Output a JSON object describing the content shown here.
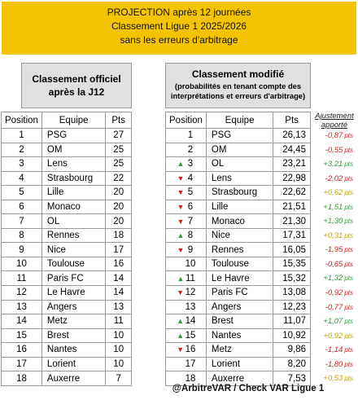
{
  "banner": {
    "line1": "PROJECTION après 12 journées",
    "line2": "Classement Ligue 1 2025/2026",
    "line3": "sans les erreurs d'arbitrage"
  },
  "left": {
    "title_line1": "Classement officiel",
    "title_line2": "après la J12",
    "headers": [
      "Position",
      "Equipe",
      "Pts"
    ],
    "rows": [
      {
        "pos": "1",
        "team": "PSG",
        "pts": "27"
      },
      {
        "pos": "2",
        "team": "OM",
        "pts": "25"
      },
      {
        "pos": "3",
        "team": "Lens",
        "pts": "25"
      },
      {
        "pos": "4",
        "team": "Strasbourg",
        "pts": "22"
      },
      {
        "pos": "5",
        "team": "Lille",
        "pts": "20"
      },
      {
        "pos": "6",
        "team": "Monaco",
        "pts": "20"
      },
      {
        "pos": "7",
        "team": "OL",
        "pts": "20"
      },
      {
        "pos": "8",
        "team": "Rennes",
        "pts": "18"
      },
      {
        "pos": "9",
        "team": "Nice",
        "pts": "17"
      },
      {
        "pos": "10",
        "team": "Toulouse",
        "pts": "16"
      },
      {
        "pos": "11",
        "team": "Paris FC",
        "pts": "14"
      },
      {
        "pos": "12",
        "team": "Le Havre",
        "pts": "14"
      },
      {
        "pos": "13",
        "team": "Angers",
        "pts": "13"
      },
      {
        "pos": "14",
        "team": "Metz",
        "pts": "11"
      },
      {
        "pos": "15",
        "team": "Brest",
        "pts": "10"
      },
      {
        "pos": "16",
        "team": "Nantes",
        "pts": "10"
      },
      {
        "pos": "17",
        "team": "Lorient",
        "pts": "10"
      },
      {
        "pos": "18",
        "team": "Auxerre",
        "pts": "7"
      }
    ]
  },
  "right": {
    "title": "Classement modifié",
    "subtitle": "(probabilités en tenant compte des interprétations et erreurs d'arbitrage)",
    "headers": [
      "Position",
      "Equipe",
      "Pts"
    ],
    "adjust_header": "Ajustement apporté",
    "unit": "pts",
    "colors": {
      "up": "#2e9b3a",
      "down": "#d02020",
      "neutral": "#c8a000"
    },
    "rows": [
      {
        "trend": "",
        "pos": "1",
        "team": "PSG",
        "pts": "26,13",
        "adj": "-0,87",
        "adj_kind": "neg"
      },
      {
        "trend": "",
        "pos": "2",
        "team": "OM",
        "pts": "24,45",
        "adj": "-0,55",
        "adj_kind": "neg"
      },
      {
        "trend": "up",
        "pos": "3",
        "team": "OL",
        "pts": "23,21",
        "adj": "+3,21",
        "adj_kind": "pos"
      },
      {
        "trend": "down",
        "pos": "4",
        "team": "Lens",
        "pts": "22,98",
        "adj": "-2,02",
        "adj_kind": "neg"
      },
      {
        "trend": "down",
        "pos": "5",
        "team": "Strasbourg",
        "pts": "22,62",
        "adj": "+0,62",
        "adj_kind": "neu"
      },
      {
        "trend": "down",
        "pos": "6",
        "team": "Lille",
        "pts": "21,51",
        "adj": "+1,51",
        "adj_kind": "pos"
      },
      {
        "trend": "down",
        "pos": "7",
        "team": "Monaco",
        "pts": "21,30",
        "adj": "+1,30",
        "adj_kind": "pos"
      },
      {
        "trend": "up",
        "pos": "8",
        "team": "Nice",
        "pts": "17,31",
        "adj": "+0,31",
        "adj_kind": "neu"
      },
      {
        "trend": "down",
        "pos": "9",
        "team": "Rennes",
        "pts": "16,05",
        "adj": "-1,95",
        "adj_kind": "neg"
      },
      {
        "trend": "",
        "pos": "10",
        "team": "Toulouse",
        "pts": "15,35",
        "adj": "-0,65",
        "adj_kind": "neg"
      },
      {
        "trend": "up",
        "pos": "11",
        "team": "Le Havre",
        "pts": "15,32",
        "adj": "+1,32",
        "adj_kind": "pos"
      },
      {
        "trend": "down",
        "pos": "12",
        "team": "Paris FC",
        "pts": "13,08",
        "adj": "-0,92",
        "adj_kind": "neg"
      },
      {
        "trend": "",
        "pos": "13",
        "team": "Angers",
        "pts": "12,23",
        "adj": "-0,77",
        "adj_kind": "neg"
      },
      {
        "trend": "up",
        "pos": "14",
        "team": "Brest",
        "pts": "11,07",
        "adj": "+1,07",
        "adj_kind": "pos"
      },
      {
        "trend": "up",
        "pos": "15",
        "team": "Nantes",
        "pts": "10,92",
        "adj": "+0,92",
        "adj_kind": "neu"
      },
      {
        "trend": "down",
        "pos": "16",
        "team": "Metz",
        "pts": "9,86",
        "adj": "-1,14",
        "adj_kind": "neg"
      },
      {
        "trend": "",
        "pos": "17",
        "team": "Lorient",
        "pts": "8,20",
        "adj": "-1,80",
        "adj_kind": "neg"
      },
      {
        "trend": "",
        "pos": "18",
        "team": "Auxerre",
        "pts": "7,53",
        "adj": "+0,53",
        "adj_kind": "neu"
      }
    ]
  },
  "footer": "@ArbitreVAR / Check VAR Ligue 1"
}
